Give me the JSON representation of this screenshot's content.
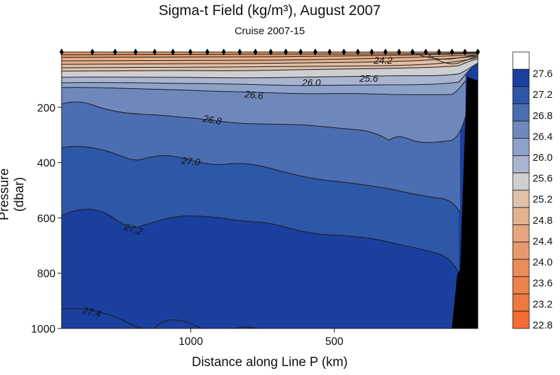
{
  "chart_data": {
    "type": "contour",
    "title": "Sigma-t Field  (kg/m³),  August 2007",
    "subtitle": "Cruise 2007-15",
    "xlabel": "Distance along Line P  (km)",
    "ylabel": "Pressure  (dbar)",
    "xlim": [
      1450,
      0
    ],
    "ylim": [
      0,
      1000
    ],
    "x_ticks": [
      {
        "value": 1000,
        "label": "1000"
      },
      {
        "value": 500,
        "label": "500"
      }
    ],
    "y_ticks": [
      {
        "value": 200,
        "label": "200"
      },
      {
        "value": 400,
        "label": "400"
      },
      {
        "value": 600,
        "label": "600"
      },
      {
        "value": 800,
        "label": "800"
      },
      {
        "value": 1000,
        "label": "1000"
      }
    ],
    "colorbar_levels": [
      "27.6",
      "27.2",
      "26.8",
      "26.4",
      "26.0",
      "25.6",
      "25.2",
      "24.8",
      "24.4",
      "24.0",
      "23.6",
      "23.2",
      "22.8"
    ],
    "contour_labels": [
      {
        "text": "24.2",
        "x": 330,
        "p": 30
      },
      {
        "text": "26.0",
        "x": 580,
        "p": 110
      },
      {
        "text": "25.6",
        "x": 380,
        "p": 95
      },
      {
        "text": "26.6",
        "x": 780,
        "p": 155
      },
      {
        "text": "26.8",
        "x": 925,
        "p": 245
      },
      {
        "text": "27.0",
        "x": 1000,
        "p": 395
      },
      {
        "text": "27.2",
        "x": 1200,
        "p": 640
      },
      {
        "text": "27.4",
        "x": 1345,
        "p": 940
      }
    ],
    "station_count": 27,
    "colors": {
      "deep": "#1a3f9e",
      "level_27_2": "#2e57a8",
      "level_27_0": "#4b6db1",
      "level_26_8": "#6f88bc",
      "level_26_6": "#8ea2c9",
      "level_26_4": "#a8b5d0",
      "level_26_0": "#cfcfd2",
      "level_25_6": "#dfc0a8",
      "surface_warm": "#e09a6a",
      "bathymetry": "#000000"
    }
  }
}
